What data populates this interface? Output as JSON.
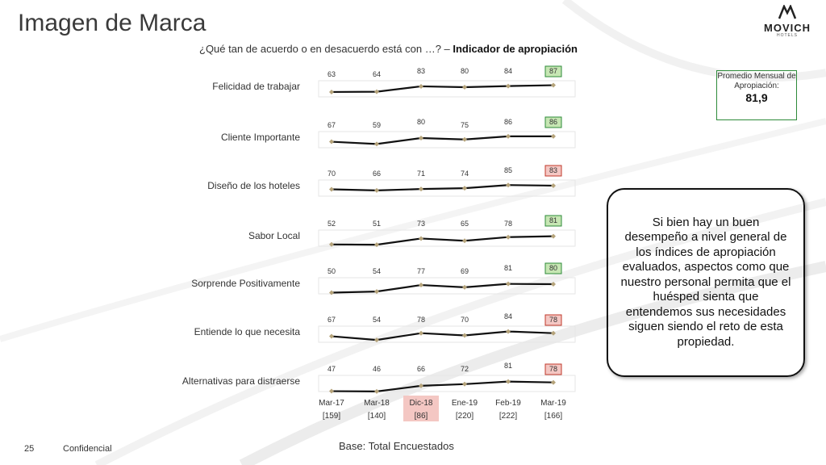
{
  "slide": {
    "title": "Imagen de Marca",
    "question_prefix": "¿Qué tan de acuerdo o en desacuerdo está con …? – ",
    "question_bold": "Indicador de apropiación",
    "logo_text": "MOVICH",
    "logo_sub": "HOTELS",
    "average_box_label": "Promedio Mensual de Apropiación:",
    "average_box_value": "81,9",
    "callout_text": "Si bien hay un buen desempeño a nivel general de los índices de apropiación evaluados, aspectos como que nuestro personal permita que el huésped sienta que entendemos sus necesidades siguen siendo el reto de esta propiedad.",
    "footer_base": "Base: Total Encuestados",
    "page_number": "25",
    "confidential": "Confidencial"
  },
  "colors": {
    "line": "#111111",
    "marker": "#b5a37a",
    "highlight_green_fill": "#c6e6b3",
    "highlight_green_border": "#2e8b3a",
    "highlight_red_fill": "#f4c7c3",
    "highlight_red_border": "#c0392b",
    "highlight_period_fill": "#f4c7c3"
  },
  "chart_data": {
    "type": "line",
    "categories": [
      "Mar-17",
      "Mar-18",
      "Dic-18",
      "Ene-19",
      "Feb-19",
      "Mar-19"
    ],
    "bases": [
      "[159]",
      "[140]",
      "[86]",
      "[220]",
      "[222]",
      "[166]"
    ],
    "highlighted_category": "Dic-18",
    "ylim": [
      0,
      100
    ],
    "series": [
      {
        "name": "Felicidad de trabajar",
        "values": [
          63,
          64,
          83,
          80,
          84,
          87
        ],
        "last_highlight": "green"
      },
      {
        "name": "Cliente Importante",
        "values": [
          67,
          59,
          80,
          75,
          86,
          86
        ],
        "last_highlight": "green"
      },
      {
        "name": "Diseño de los hoteles",
        "values": [
          70,
          66,
          71,
          74,
          85,
          83
        ],
        "last_highlight": "red"
      },
      {
        "name": "Sabor Local",
        "values": [
          52,
          51,
          73,
          65,
          78,
          81
        ],
        "last_highlight": "green"
      },
      {
        "name": "Sorprende Positivamente",
        "values": [
          50,
          54,
          77,
          69,
          81,
          80
        ],
        "last_highlight": "green"
      },
      {
        "name": "Entiende lo que necesita",
        "values": [
          67,
          54,
          78,
          70,
          84,
          78
        ],
        "last_highlight": "red"
      },
      {
        "name": "Alternativas para distraerse",
        "values": [
          47,
          46,
          66,
          72,
          81,
          78
        ],
        "last_highlight": "red"
      }
    ]
  }
}
